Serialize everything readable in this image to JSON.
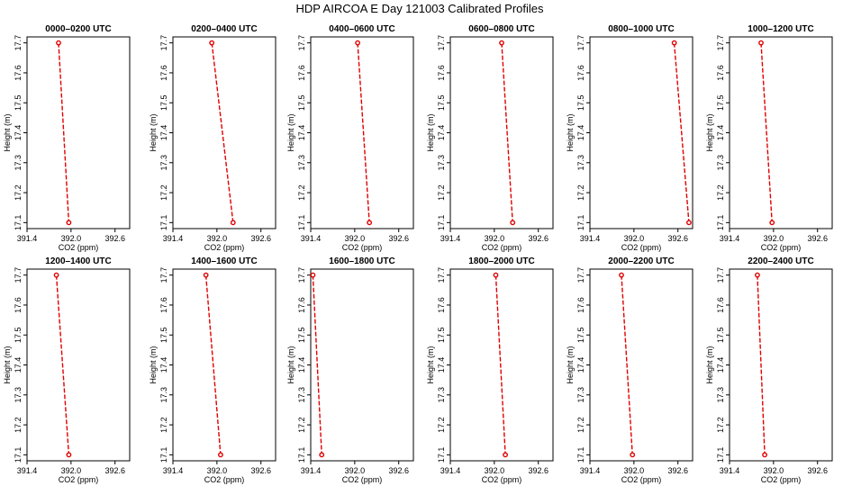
{
  "figure": {
    "title": "HDP AIRCOA E  Day 121003  Calibrated Profiles"
  },
  "chart_data": {
    "type": "line",
    "shared_axes": {
      "xlabel": "CO2 (ppm)",
      "ylabel": "Height (m)",
      "xlim": [
        391.4,
        392.8
      ],
      "ylim": [
        17.08,
        17.72
      ],
      "xticks": [
        "391.4",
        "392.0",
        "392.6"
      ],
      "xtick_values": [
        391.4,
        392.0,
        392.6
      ],
      "yticks": [
        "17.1",
        "17.2",
        "17.3",
        "17.4",
        "17.5",
        "17.6",
        "17.7"
      ],
      "ytick_values": [
        17.1,
        17.2,
        17.3,
        17.4,
        17.5,
        17.6,
        17.7
      ],
      "grid": false
    },
    "panels": [
      {
        "title": "0000–0200 UTC",
        "points": [
          [
            391.83,
            17.7
          ],
          [
            391.97,
            17.1
          ]
        ]
      },
      {
        "title": "0200–0400 UTC",
        "points": [
          [
            391.93,
            17.7
          ],
          [
            392.22,
            17.1
          ]
        ]
      },
      {
        "title": "0400–0600 UTC",
        "points": [
          [
            392.04,
            17.7
          ],
          [
            392.2,
            17.1
          ]
        ]
      },
      {
        "title": "0600–0800 UTC",
        "points": [
          [
            392.1,
            17.7
          ],
          [
            392.25,
            17.1
          ]
        ]
      },
      {
        "title": "0800–1000 UTC",
        "points": [
          [
            392.55,
            17.7
          ],
          [
            392.75,
            17.1
          ]
        ]
      },
      {
        "title": "1000–1200 UTC",
        "points": [
          [
            391.83,
            17.7
          ],
          [
            391.98,
            17.1
          ]
        ]
      },
      {
        "title": "1200–1400 UTC",
        "points": [
          [
            391.8,
            17.7
          ],
          [
            391.97,
            17.1
          ]
        ]
      },
      {
        "title": "1400–1600 UTC",
        "points": [
          [
            391.85,
            17.7
          ],
          [
            392.05,
            17.1
          ]
        ]
      },
      {
        "title": "1600–1800 UTC",
        "points": [
          [
            391.43,
            17.7
          ],
          [
            391.55,
            17.1
          ]
        ]
      },
      {
        "title": "1800–2000 UTC",
        "points": [
          [
            392.02,
            17.7
          ],
          [
            392.15,
            17.1
          ]
        ]
      },
      {
        "title": "2000–2200 UTC",
        "points": [
          [
            391.83,
            17.7
          ],
          [
            391.98,
            17.1
          ]
        ]
      },
      {
        "title": "2200–2400 UTC",
        "points": [
          [
            391.78,
            17.7
          ],
          [
            391.88,
            17.1
          ]
        ]
      }
    ]
  }
}
